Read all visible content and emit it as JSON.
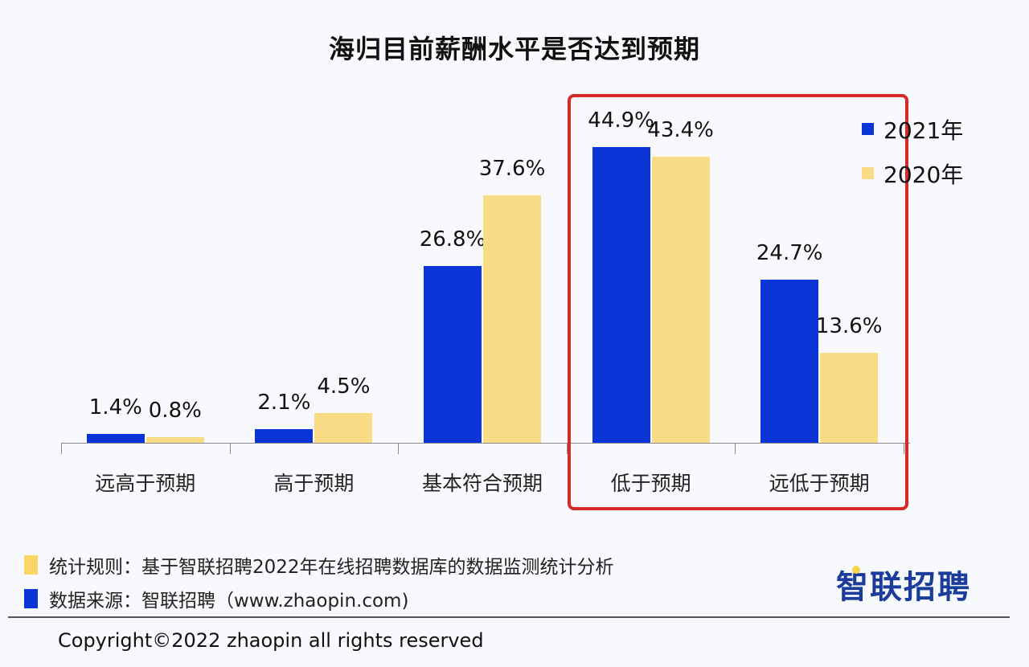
{
  "title": "海归目前薪酬水平是否达到预期",
  "chart_data": {
    "type": "bar",
    "title": "海归目前薪酬水平是否达到预期",
    "xlabel": "",
    "ylabel": "",
    "unit": "%",
    "categories": [
      "远高于预期",
      "高于预期",
      "基本符合预期",
      "低于预期",
      "远低于预期"
    ],
    "series": [
      {
        "name": "2021年",
        "color": "#0b35d6",
        "values": [
          1.4,
          2.1,
          26.8,
          44.9,
          24.7
        ]
      },
      {
        "name": "2020年",
        "color": "#fbdc86",
        "values": [
          0.8,
          4.5,
          37.6,
          43.4,
          13.6
        ]
      }
    ],
    "value_labels": {
      "2021年": [
        "1.4%",
        "2.1%",
        "26.8%",
        "44.9%",
        "24.7%"
      ],
      "2020年": [
        "0.8%",
        "4.5%",
        "37.6%",
        "43.4%",
        "13.6%"
      ]
    },
    "ylim": [
      0,
      50
    ],
    "grid": false,
    "legend_position": "top-right",
    "annotation": "Red rectangle highlights categories 低于预期 and 远低于预期"
  },
  "legend": [
    {
      "label": "2021年",
      "color": "#0b35d6"
    },
    {
      "label": "2020年",
      "color": "#fbdc86"
    }
  ],
  "highlight_color": "#d42a2a",
  "footer": {
    "rule": "统计规则：基于智联招聘2022年在线招聘数据库的数据监测统计分析",
    "source": "数据来源：智联招聘（www.zhaopin.com)",
    "copyright": "Copyright©2022 zhaopin all rights reserved",
    "logo": "智联招聘"
  }
}
